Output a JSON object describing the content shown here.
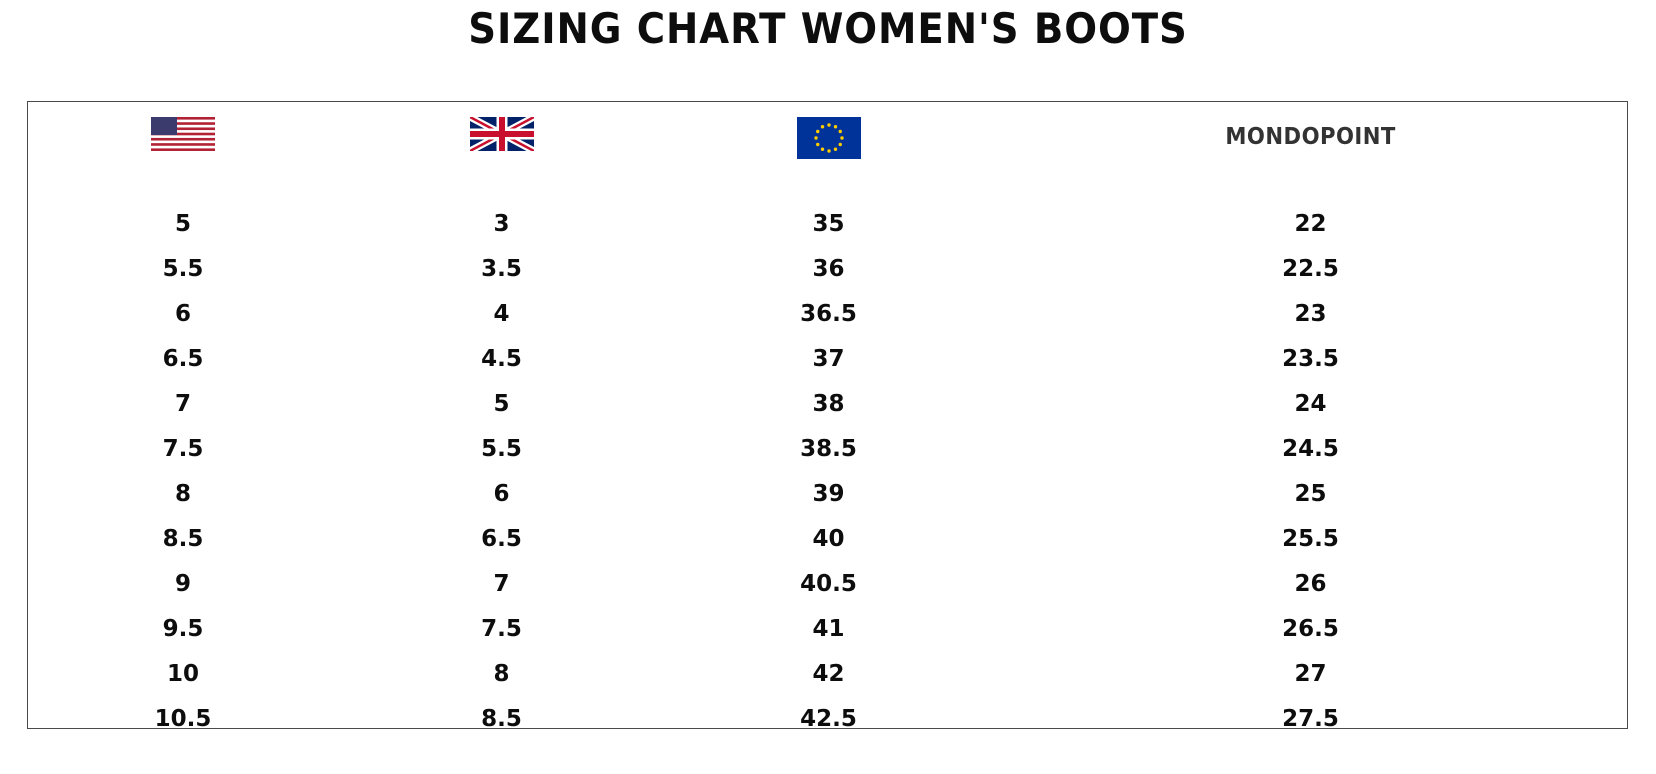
{
  "title": "SIZING CHART WOMEN'S BOOTS",
  "columns": [
    {
      "key": "us",
      "icon": "us-flag-icon"
    },
    {
      "key": "uk",
      "icon": "uk-flag-icon"
    },
    {
      "key": "eu",
      "icon": "eu-flag-icon"
    },
    {
      "key": "mondopoint",
      "label": "MONDOPOINT"
    }
  ],
  "colors": {
    "us_red": "#b22234",
    "us_blue": "#3c3b6e",
    "uk_blue": "#012169",
    "uk_red": "#c8102e",
    "eu_blue": "#003399",
    "eu_gold": "#ffcc00",
    "border": "#4a4a4a"
  },
  "rows": [
    [
      "5",
      "3",
      "35",
      "22"
    ],
    [
      "5.5",
      "3.5",
      "36",
      "22.5"
    ],
    [
      "6",
      "4",
      "36.5",
      "23"
    ],
    [
      "6.5",
      "4.5",
      "37",
      "23.5"
    ],
    [
      "7",
      "5",
      "38",
      "24"
    ],
    [
      "7.5",
      "5.5",
      "38.5",
      "24.5"
    ],
    [
      "8",
      "6",
      "39",
      "25"
    ],
    [
      "8.5",
      "6.5",
      "40",
      "25.5"
    ],
    [
      "9",
      "7",
      "40.5",
      "26"
    ],
    [
      "9.5",
      "7.5",
      "41",
      "26.5"
    ],
    [
      "10",
      "8",
      "42",
      "27"
    ],
    [
      "10.5",
      "8.5",
      "42.5",
      "27.5"
    ]
  ]
}
